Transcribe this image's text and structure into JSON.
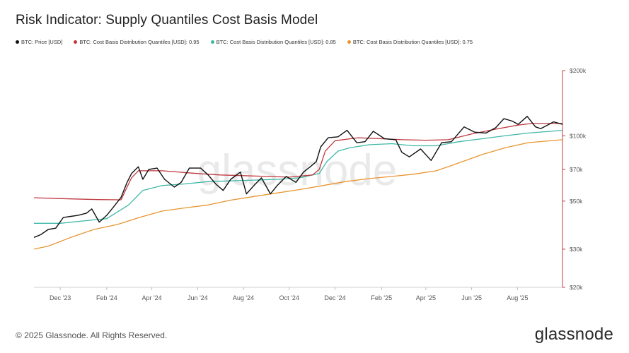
{
  "header": {
    "title": "Risk Indicator: Supply Quantiles Cost Basis Model"
  },
  "footer": {
    "copyright": "© 2025 Glassnode. All Rights Reserved.",
    "brand": "glassnode"
  },
  "watermark": "glassnode",
  "chart_data": {
    "type": "line",
    "title": "Risk Indicator: Supply Quantiles Cost Basis Model",
    "x_axis": {
      "type": "date",
      "range": [
        "2023-10-27",
        "2025-09-30"
      ],
      "ticks": [
        {
          "date": "2023-12-01",
          "label": "Dec '23"
        },
        {
          "date": "2024-02-01",
          "label": "Feb '24"
        },
        {
          "date": "2024-04-01",
          "label": "Apr '24"
        },
        {
          "date": "2024-06-01",
          "label": "Jun '24"
        },
        {
          "date": "2024-08-01",
          "label": "Aug '24"
        },
        {
          "date": "2024-10-01",
          "label": "Oct '24"
        },
        {
          "date": "2024-12-01",
          "label": "Dec '24"
        },
        {
          "date": "2025-02-01",
          "label": "Feb '25"
        },
        {
          "date": "2025-04-01",
          "label": "Apr '25"
        },
        {
          "date": "2025-06-01",
          "label": "Jun '25"
        },
        {
          "date": "2025-08-01",
          "label": "Aug '25"
        }
      ]
    },
    "y_axis": {
      "scale": "log",
      "range": [
        20000,
        200000
      ],
      "position": "right",
      "ticks": [
        {
          "value": 20000,
          "label": "$20k"
        },
        {
          "value": 30000,
          "label": "$30k"
        },
        {
          "value": 50000,
          "label": "$50k"
        },
        {
          "value": 70000,
          "label": "$70k"
        },
        {
          "value": 100000,
          "label": "$100k"
        },
        {
          "value": 200000,
          "label": "$200k"
        }
      ]
    },
    "grid": false,
    "legend_position": "top-left",
    "series": [
      {
        "name": "BTC: Price [USD]",
        "color": "#111111",
        "points": [
          [
            "2023-10-27",
            34000
          ],
          [
            "2023-11-05",
            35000
          ],
          [
            "2023-11-15",
            37000
          ],
          [
            "2023-11-25",
            37500
          ],
          [
            "2023-12-05",
            42000
          ],
          [
            "2023-12-15",
            42500
          ],
          [
            "2023-12-25",
            43000
          ],
          [
            "2024-01-05",
            44000
          ],
          [
            "2024-01-12",
            46000
          ],
          [
            "2024-01-22",
            40000
          ],
          [
            "2024-02-01",
            43000
          ],
          [
            "2024-02-10",
            47000
          ],
          [
            "2024-02-20",
            52000
          ],
          [
            "2024-02-28",
            61000
          ],
          [
            "2024-03-05",
            67000
          ],
          [
            "2024-03-14",
            72000
          ],
          [
            "2024-03-20",
            63000
          ],
          [
            "2024-03-28",
            70000
          ],
          [
            "2024-04-08",
            71000
          ],
          [
            "2024-04-18",
            63000
          ],
          [
            "2024-05-01",
            58000
          ],
          [
            "2024-05-10",
            61000
          ],
          [
            "2024-05-21",
            71000
          ],
          [
            "2024-06-05",
            71000
          ],
          [
            "2024-06-15",
            66000
          ],
          [
            "2024-06-25",
            60000
          ],
          [
            "2024-07-05",
            56000
          ],
          [
            "2024-07-15",
            63000
          ],
          [
            "2024-07-28",
            68000
          ],
          [
            "2024-08-05",
            54000
          ],
          [
            "2024-08-15",
            59000
          ],
          [
            "2024-08-25",
            64000
          ],
          [
            "2024-09-06",
            54000
          ],
          [
            "2024-09-15",
            59000
          ],
          [
            "2024-09-27",
            65000
          ],
          [
            "2024-10-10",
            61000
          ],
          [
            "2024-10-20",
            68000
          ],
          [
            "2024-10-29",
            72000
          ],
          [
            "2024-11-06",
            76000
          ],
          [
            "2024-11-12",
            89000
          ],
          [
            "2024-11-22",
            98000
          ],
          [
            "2024-12-05",
            99000
          ],
          [
            "2024-12-17",
            106000
          ],
          [
            "2024-12-30",
            93000
          ],
          [
            "2025-01-10",
            94000
          ],
          [
            "2025-01-21",
            105000
          ],
          [
            "2025-02-05",
            97000
          ],
          [
            "2025-02-20",
            96000
          ],
          [
            "2025-02-28",
            84000
          ],
          [
            "2025-03-10",
            80000
          ],
          [
            "2025-03-25",
            87000
          ],
          [
            "2025-04-08",
            77000
          ],
          [
            "2025-04-22",
            93000
          ],
          [
            "2025-05-05",
            94000
          ],
          [
            "2025-05-22",
            110000
          ],
          [
            "2025-06-05",
            104000
          ],
          [
            "2025-06-20",
            103000
          ],
          [
            "2025-07-03",
            109000
          ],
          [
            "2025-07-14",
            120000
          ],
          [
            "2025-07-25",
            117000
          ],
          [
            "2025-08-02",
            113000
          ],
          [
            "2025-08-14",
            123000
          ],
          [
            "2025-08-25",
            110000
          ],
          [
            "2025-09-01",
            108000
          ],
          [
            "2025-09-10",
            112000
          ],
          [
            "2025-09-18",
            116000
          ],
          [
            "2025-09-30",
            113000
          ]
        ]
      },
      {
        "name": "BTC: Cost Basis Distribution Quantiles [USD]: 0.95",
        "color": "#c0393f",
        "points": [
          [
            "2023-10-27",
            51800
          ],
          [
            "2023-12-15",
            51200
          ],
          [
            "2024-01-20",
            50800
          ],
          [
            "2024-02-20",
            50700
          ],
          [
            "2024-02-28",
            58000
          ],
          [
            "2024-03-05",
            64000
          ],
          [
            "2024-03-14",
            69000
          ],
          [
            "2024-04-15",
            69000
          ],
          [
            "2024-06-01",
            67000
          ],
          [
            "2024-07-01",
            66000
          ],
          [
            "2024-08-01",
            65500
          ],
          [
            "2024-09-01",
            65000
          ],
          [
            "2024-10-01",
            64500
          ],
          [
            "2024-11-01",
            66000
          ],
          [
            "2024-11-10",
            70000
          ],
          [
            "2024-11-18",
            85000
          ],
          [
            "2024-12-01",
            95000
          ],
          [
            "2025-01-01",
            98000
          ],
          [
            "2025-02-01",
            97000
          ],
          [
            "2025-03-01",
            96000
          ],
          [
            "2025-04-01",
            95500
          ],
          [
            "2025-05-01",
            96000
          ],
          [
            "2025-06-01",
            102000
          ],
          [
            "2025-07-01",
            107000
          ],
          [
            "2025-08-01",
            112000
          ],
          [
            "2025-08-20",
            114000
          ],
          [
            "2025-09-30",
            114000
          ]
        ]
      },
      {
        "name": "BTC: Cost Basis Distribution Quantiles [USD]: 0.85",
        "color": "#3fb8a6",
        "points": [
          [
            "2023-10-27",
            39500
          ],
          [
            "2023-12-01",
            39500
          ],
          [
            "2024-01-01",
            40500
          ],
          [
            "2024-02-01",
            41500
          ],
          [
            "2024-03-01",
            48000
          ],
          [
            "2024-03-20",
            56000
          ],
          [
            "2024-04-15",
            59000
          ],
          [
            "2024-05-15",
            60000
          ],
          [
            "2024-06-15",
            61500
          ],
          [
            "2024-07-15",
            62000
          ],
          [
            "2024-08-15",
            62500
          ],
          [
            "2024-09-15",
            63000
          ],
          [
            "2024-10-15",
            64000
          ],
          [
            "2024-11-10",
            67000
          ],
          [
            "2024-11-20",
            76000
          ],
          [
            "2024-12-05",
            85000
          ],
          [
            "2024-12-20",
            88000
          ],
          [
            "2025-01-15",
            91000
          ],
          [
            "2025-02-15",
            92000
          ],
          [
            "2025-03-15",
            90000
          ],
          [
            "2025-04-15",
            90000
          ],
          [
            "2025-05-15",
            94000
          ],
          [
            "2025-06-15",
            97000
          ],
          [
            "2025-07-15",
            100000
          ],
          [
            "2025-08-15",
            103000
          ],
          [
            "2025-09-30",
            106000
          ]
        ]
      },
      {
        "name": "BTC: Cost Basis Distribution Quantiles [USD]: 0.75",
        "color": "#e8952f",
        "points": [
          [
            "2023-10-27",
            30000
          ],
          [
            "2023-11-15",
            31000
          ],
          [
            "2023-12-15",
            34000
          ],
          [
            "2024-01-15",
            37000
          ],
          [
            "2024-02-15",
            39000
          ],
          [
            "2024-03-15",
            42000
          ],
          [
            "2024-04-15",
            45000
          ],
          [
            "2024-05-15",
            46500
          ],
          [
            "2024-06-15",
            48000
          ],
          [
            "2024-07-15",
            50500
          ],
          [
            "2024-08-15",
            52500
          ],
          [
            "2024-09-15",
            54500
          ],
          [
            "2024-10-15",
            56500
          ],
          [
            "2024-11-15",
            59000
          ],
          [
            "2024-12-15",
            61500
          ],
          [
            "2025-01-15",
            63500
          ],
          [
            "2025-02-15",
            65000
          ],
          [
            "2025-03-15",
            66500
          ],
          [
            "2025-04-15",
            69000
          ],
          [
            "2025-05-15",
            75000
          ],
          [
            "2025-06-15",
            82000
          ],
          [
            "2025-07-15",
            88000
          ],
          [
            "2025-08-15",
            93000
          ],
          [
            "2025-09-30",
            96000
          ]
        ]
      }
    ]
  }
}
